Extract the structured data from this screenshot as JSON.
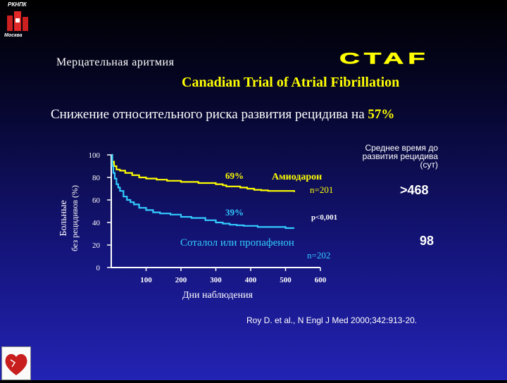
{
  "logo": {
    "top_text": "РКНПК",
    "bottom_text": "Москва"
  },
  "header": {
    "heading": "Мерцательная аритмия",
    "acronym": "CTAF",
    "trial_title": "Canadian Trial of Atrial Fibrillation",
    "subtitle_text": "Снижение относительного риска развития рецидива на ",
    "subtitle_pct": "57%"
  },
  "colors": {
    "amiodarone": "#FFFF00",
    "sotalol": "#33CCFF",
    "axis": "#FFFFFF",
    "highlight": "#FFFF00"
  },
  "chart_data": {
    "type": "line",
    "ylabel_line1": "Больные",
    "ylabel_line2": "без рецидивов (%)",
    "xlabel": "Дни наблюдения",
    "yticks": [
      "0",
      "20",
      "40",
      "60",
      "80",
      "100"
    ],
    "xticks": [
      "100",
      "200",
      "300",
      "400",
      "500",
      "600"
    ],
    "xlim": [
      0,
      600
    ],
    "ylim": [
      0,
      100
    ],
    "series": [
      {
        "name": "Амиодарон",
        "n_label": "n=201",
        "pct_label": "69%",
        "points": [
          [
            0,
            100
          ],
          [
            3,
            94
          ],
          [
            8,
            90
          ],
          [
            15,
            87
          ],
          [
            25,
            86
          ],
          [
            40,
            84
          ],
          [
            60,
            82
          ],
          [
            80,
            80
          ],
          [
            100,
            79
          ],
          [
            130,
            78
          ],
          [
            160,
            77
          ],
          [
            200,
            76
          ],
          [
            250,
            75
          ],
          [
            300,
            74
          ],
          [
            320,
            73
          ],
          [
            330,
            72
          ],
          [
            350,
            72
          ],
          [
            370,
            71
          ],
          [
            390,
            70
          ],
          [
            410,
            69
          ],
          [
            430,
            68.5
          ],
          [
            450,
            68
          ],
          [
            500,
            68
          ],
          [
            525,
            67
          ]
        ]
      },
      {
        "name": "Соталол или пропафенон",
        "n_label": "n=202",
        "pct_label": "39%",
        "points": [
          [
            0,
            100
          ],
          [
            3,
            90
          ],
          [
            6,
            84
          ],
          [
            10,
            79
          ],
          [
            15,
            74
          ],
          [
            20,
            71
          ],
          [
            25,
            68
          ],
          [
            35,
            63
          ],
          [
            45,
            60
          ],
          [
            55,
            58
          ],
          [
            65,
            56
          ],
          [
            80,
            53
          ],
          [
            100,
            51
          ],
          [
            120,
            49
          ],
          [
            140,
            48
          ],
          [
            170,
            47
          ],
          [
            200,
            45
          ],
          [
            230,
            44
          ],
          [
            270,
            42
          ],
          [
            300,
            40
          ],
          [
            320,
            39
          ],
          [
            340,
            38
          ],
          [
            360,
            37.5
          ],
          [
            380,
            37
          ],
          [
            420,
            36
          ],
          [
            450,
            36
          ],
          [
            500,
            35
          ],
          [
            525,
            35
          ]
        ]
      }
    ],
    "annotations": {
      "p_value": "p<0,001",
      "time_header_lines": [
        "Среднее время до",
        "развития рецидива",
        "(сут)"
      ],
      "time_amiodarone": ">468",
      "time_sotalol": "98"
    }
  },
  "citation": "Roy D. et al., N Engl J Med 2000;342:913-20."
}
